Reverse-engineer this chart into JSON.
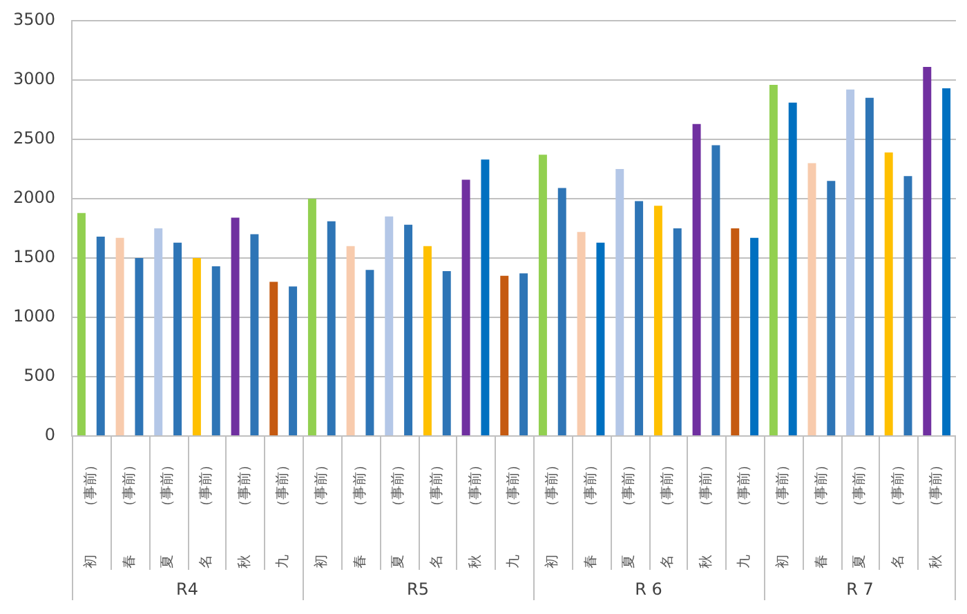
{
  "chart_data": [
    {
      "type": "bar",
      "categories": [
        "初　　　（事前）",
        "春　　　（事前）",
        "夏　　　（事前）",
        "名　　　（事前）",
        "秋　　　（事前）",
        "九　　　（事前）"
      ],
      "series": [
        {
          "colors": [
            "#92d050",
            "#f8cbad",
            "#b4c7e7",
            "#ffc000",
            "#7030a0",
            "#c55a11"
          ],
          "values": [
            1880,
            1670,
            1750,
            1500,
            1840,
            1300
          ]
        },
        {
          "color": "#2e75b6",
          "values": [
            1680,
            1500,
            1630,
            1430,
            1700,
            1260
          ]
        }
      ],
      "xlabel": "R4",
      "ylim": [
        0,
        3500
      ],
      "yticks": [
        0,
        500,
        1000,
        1500,
        2000,
        2500,
        3000,
        3500
      ],
      "grid": "y"
    },
    {
      "type": "bar",
      "categories": [
        "初　　　（事前）",
        "春　　　（事前）",
        "夏　　　（事前）",
        "名　　　（事前）",
        "秋　　　（事前）",
        "九　　　（事前）"
      ],
      "series": [
        {
          "colors": [
            "#92d050",
            "#f8cbad",
            "#b4c7e7",
            "#ffc000",
            "#7030a0",
            "#c55a11"
          ],
          "values": [
            2000,
            1600,
            1850,
            1600,
            2160,
            1350
          ]
        },
        {
          "colors": [
            "#2e75b6",
            "#2e75b6",
            "#2e75b6",
            "#2e75b6",
            "#0070c0",
            "#2e75b6"
          ],
          "values": [
            1810,
            1400,
            1780,
            1390,
            2330,
            1370
          ]
        }
      ],
      "xlabel": "R5",
      "ylim": [
        0,
        3500
      ],
      "yticks": [
        0,
        500,
        1000,
        1500,
        2000,
        2500,
        3000,
        3500
      ],
      "grid": "y",
      "tick_labels": "x"
    },
    {
      "type": "bar",
      "categories": [
        "初　　　（事前）",
        "春　　　（事前）",
        "夏　　　（事前）",
        "名　　　（事前）",
        "秋　　　（事前）",
        "九　　　（事前）"
      ],
      "series": [
        {
          "colors": [
            "#92d050",
            "#f8cbad",
            "#b4c7e7",
            "#ffc000",
            "#7030a0",
            "#c55a11"
          ],
          "values": [
            2370,
            1720,
            2250,
            1940,
            2630,
            1750
          ]
        },
        {
          "colors": [
            "#2e75b6",
            "#0070c0",
            "#2e75b6",
            "#2e75b6",
            "#2e75b6",
            "#0070c0"
          ],
          "values": [
            2090,
            1630,
            1980,
            1750,
            2450,
            1670
          ]
        }
      ],
      "xlabel": "R 6",
      "ylim": [
        0,
        3500
      ],
      "yticks": [
        0,
        500,
        1000,
        1500,
        2000,
        2500,
        3000,
        3500
      ],
      "grid": "y",
      "tick_labels": "x"
    },
    {
      "type": "bar",
      "categories": [
        "初　　　（事前）",
        "春　　　（事前）",
        "夏　　　（事前）",
        "名　　　（事前）",
        "秋　　　（事前）"
      ],
      "series": [
        {
          "colors": [
            "#92d050",
            "#f8cbad",
            "#b4c7e7",
            "#ffc000",
            "#7030a0"
          ],
          "values": [
            2960,
            2300,
            2920,
            2390,
            3110
          ]
        },
        {
          "colors": [
            "#0070c0",
            "#2e75b6",
            "#2e75b6",
            "#2e75b6",
            "#0070c0"
          ],
          "values": [
            2810,
            2150,
            2850,
            2190,
            2930
          ]
        }
      ],
      "xlabel": "R 7",
      "ylim": [
        0,
        3500
      ],
      "yticks": [
        0,
        500,
        1000,
        1500,
        2000,
        2500,
        3000,
        3500
      ],
      "grid": "y",
      "tick_labels": "x"
    }
  ]
}
